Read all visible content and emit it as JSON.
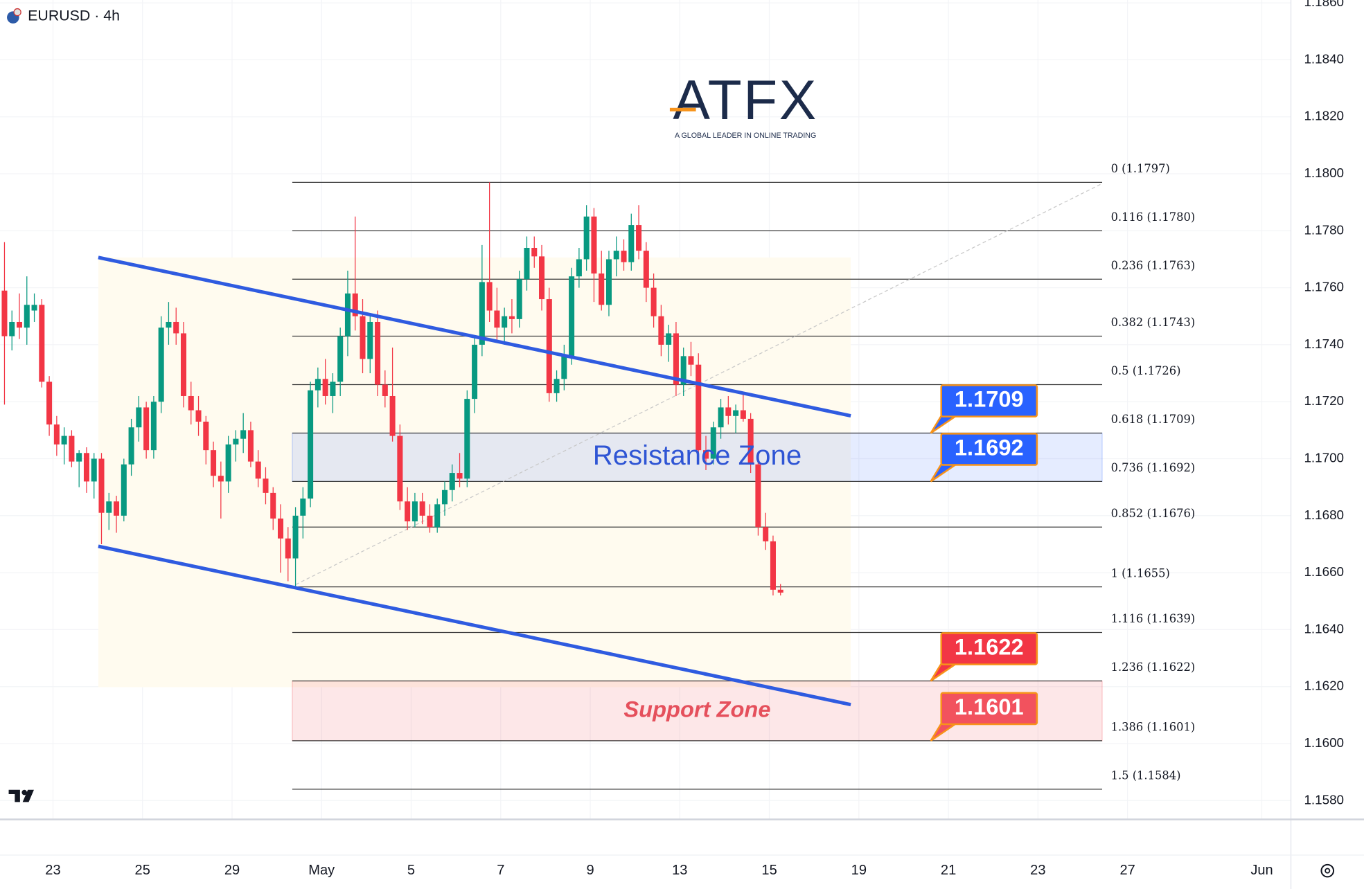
{
  "chart_data": {
    "type": "candlestick",
    "title": "EURUSD · 4h",
    "logo": {
      "name": "ATFX",
      "tagline": "A GLOBAL LEADER IN ONLINE TRADING"
    },
    "up_color": "#089981",
    "down_color": "#f23645",
    "grid": true,
    "xlim": [
      -0.6,
      172.4
    ],
    "ylim": [
      1.1574,
      1.1861
    ],
    "xticks": [
      {
        "value": 6.5,
        "label": "23"
      },
      {
        "value": 18.5,
        "label": "25"
      },
      {
        "value": 30.5,
        "label": "29"
      },
      {
        "value": 42.5,
        "label": "May"
      },
      {
        "value": 54.5,
        "label": "5"
      },
      {
        "value": 66.5,
        "label": "7"
      },
      {
        "value": 78.5,
        "label": "9"
      },
      {
        "value": 90.5,
        "label": "13"
      },
      {
        "value": 102.5,
        "label": "15"
      },
      {
        "value": 114.5,
        "label": "19"
      },
      {
        "value": 126.5,
        "label": "21"
      },
      {
        "value": 138.5,
        "label": "23"
      },
      {
        "value": 150.5,
        "label": "27"
      },
      {
        "value": 168.5,
        "label": "Jun"
      }
    ],
    "yticks": [
      {
        "value": 1.186,
        "label": "1.1860"
      },
      {
        "value": 1.184,
        "label": "1.1840"
      },
      {
        "value": 1.182,
        "label": "1.1820"
      },
      {
        "value": 1.18,
        "label": "1.1800"
      },
      {
        "value": 1.178,
        "label": "1.1780"
      },
      {
        "value": 1.176,
        "label": "1.1760"
      },
      {
        "value": 1.174,
        "label": "1.1740"
      },
      {
        "value": 1.172,
        "label": "1.1720"
      },
      {
        "value": 1.17,
        "label": "1.1700"
      },
      {
        "value": 1.168,
        "label": "1.1680"
      },
      {
        "value": 1.166,
        "label": "1.1660"
      },
      {
        "value": 1.164,
        "label": "1.1640"
      },
      {
        "value": 1.162,
        "label": "1.1620"
      },
      {
        "value": 1.16,
        "label": "1.1600"
      },
      {
        "value": 1.158,
        "label": "1.1580"
      }
    ],
    "candles": [
      [
        1.1759,
        1.1776,
        1.1719,
        1.1743
      ],
      [
        1.1743,
        1.1752,
        1.1738,
        1.1748
      ],
      [
        1.1748,
        1.1758,
        1.1742,
        1.1746
      ],
      [
        1.1746,
        1.1764,
        1.174,
        1.1754
      ],
      [
        1.1752,
        1.1758,
        1.1748,
        1.1754
      ],
      [
        1.1754,
        1.1756,
        1.1725,
        1.1727
      ],
      [
        1.1727,
        1.1729,
        1.1708,
        1.1712
      ],
      [
        1.1712,
        1.1715,
        1.1701,
        1.1705
      ],
      [
        1.1705,
        1.1711,
        1.1698,
        1.1708
      ],
      [
        1.1708,
        1.171,
        1.1697,
        1.1699
      ],
      [
        1.1699,
        1.1703,
        1.169,
        1.1702
      ],
      [
        1.1702,
        1.1704,
        1.1688,
        1.1692
      ],
      [
        1.1692,
        1.1702,
        1.1686,
        1.17
      ],
      [
        1.17,
        1.1702,
        1.167,
        1.1681
      ],
      [
        1.1681,
        1.1688,
        1.1675,
        1.1685
      ],
      [
        1.1685,
        1.1687,
        1.1674,
        1.168
      ],
      [
        1.168,
        1.17,
        1.1678,
        1.1698
      ],
      [
        1.1698,
        1.1714,
        1.1694,
        1.1711
      ],
      [
        1.1711,
        1.1722,
        1.1706,
        1.1718
      ],
      [
        1.1718,
        1.172,
        1.17,
        1.1703
      ],
      [
        1.1703,
        1.1722,
        1.17,
        1.172
      ],
      [
        1.172,
        1.175,
        1.1716,
        1.1746
      ],
      [
        1.1746,
        1.1755,
        1.174,
        1.1748
      ],
      [
        1.1748,
        1.1753,
        1.174,
        1.1744
      ],
      [
        1.1744,
        1.1748,
        1.1718,
        1.1722
      ],
      [
        1.1722,
        1.1727,
        1.1712,
        1.1717
      ],
      [
        1.1717,
        1.1722,
        1.1708,
        1.1713
      ],
      [
        1.1713,
        1.1715,
        1.1698,
        1.1703
      ],
      [
        1.1703,
        1.1706,
        1.169,
        1.1694
      ],
      [
        1.1694,
        1.1699,
        1.1679,
        1.1692
      ],
      [
        1.1692,
        1.1708,
        1.1688,
        1.1705
      ],
      [
        1.1705,
        1.171,
        1.1699,
        1.1707
      ],
      [
        1.1707,
        1.1716,
        1.1702,
        1.171
      ],
      [
        1.171,
        1.1713,
        1.1697,
        1.1699
      ],
      [
        1.1699,
        1.1703,
        1.169,
        1.1693
      ],
      [
        1.1693,
        1.1697,
        1.1684,
        1.1688
      ],
      [
        1.1688,
        1.169,
        1.1675,
        1.1679
      ],
      [
        1.1679,
        1.1684,
        1.166,
        1.1672
      ],
      [
        1.1672,
        1.1676,
        1.1657,
        1.1665
      ],
      [
        1.1665,
        1.1683,
        1.1655,
        1.168
      ],
      [
        1.168,
        1.169,
        1.1672,
        1.1686
      ],
      [
        1.1686,
        1.1727,
        1.1683,
        1.1724
      ],
      [
        1.1724,
        1.1732,
        1.1718,
        1.1728
      ],
      [
        1.1728,
        1.1735,
        1.1719,
        1.1722
      ],
      [
        1.1722,
        1.173,
        1.1716,
        1.1727
      ],
      [
        1.1727,
        1.1746,
        1.1722,
        1.1743
      ],
      [
        1.1743,
        1.1766,
        1.1736,
        1.1758
      ],
      [
        1.1758,
        1.1785,
        1.1745,
        1.175
      ],
      [
        1.175,
        1.1756,
        1.173,
        1.1735
      ],
      [
        1.1735,
        1.175,
        1.173,
        1.1748
      ],
      [
        1.1748,
        1.1752,
        1.1722,
        1.1726
      ],
      [
        1.1726,
        1.1731,
        1.1718,
        1.1722
      ],
      [
        1.1722,
        1.1739,
        1.1706,
        1.1708
      ],
      [
        1.1708,
        1.1712,
        1.1682,
        1.1685
      ],
      [
        1.1685,
        1.169,
        1.1675,
        1.1678
      ],
      [
        1.1678,
        1.1688,
        1.1676,
        1.1685
      ],
      [
        1.1685,
        1.1688,
        1.1677,
        1.168
      ],
      [
        1.168,
        1.1684,
        1.1674,
        1.1676
      ],
      [
        1.1676,
        1.1686,
        1.1674,
        1.1684
      ],
      [
        1.1684,
        1.1692,
        1.168,
        1.1689
      ],
      [
        1.1689,
        1.1698,
        1.1685,
        1.1695
      ],
      [
        1.1695,
        1.1702,
        1.169,
        1.1693
      ],
      [
        1.1693,
        1.1724,
        1.169,
        1.1721
      ],
      [
        1.1721,
        1.1743,
        1.1716,
        1.174
      ],
      [
        1.174,
        1.1775,
        1.1736,
        1.1762
      ],
      [
        1.1762,
        1.1797,
        1.1748,
        1.1752
      ],
      [
        1.1752,
        1.176,
        1.1741,
        1.1746
      ],
      [
        1.1746,
        1.1753,
        1.174,
        1.175
      ],
      [
        1.175,
        1.1756,
        1.1744,
        1.1749
      ],
      [
        1.1749,
        1.1766,
        1.1746,
        1.1763
      ],
      [
        1.1763,
        1.1778,
        1.1759,
        1.1774
      ],
      [
        1.1774,
        1.1778,
        1.1767,
        1.1771
      ],
      [
        1.1771,
        1.1775,
        1.1752,
        1.1756
      ],
      [
        1.1756,
        1.176,
        1.172,
        1.1723
      ],
      [
        1.1723,
        1.1731,
        1.172,
        1.1728
      ],
      [
        1.1728,
        1.174,
        1.1724,
        1.1736
      ],
      [
        1.1736,
        1.1767,
        1.1733,
        1.1764
      ],
      [
        1.1764,
        1.1774,
        1.176,
        1.177
      ],
      [
        1.177,
        1.1789,
        1.1766,
        1.1785
      ],
      [
        1.1785,
        1.1788,
        1.1755,
        1.1765
      ],
      [
        1.1765,
        1.1773,
        1.1752,
        1.1754
      ],
      [
        1.1754,
        1.1773,
        1.175,
        1.177
      ],
      [
        1.177,
        1.1778,
        1.1764,
        1.1773
      ],
      [
        1.1773,
        1.1777,
        1.1766,
        1.1769
      ],
      [
        1.1769,
        1.1786,
        1.1766,
        1.1782
      ],
      [
        1.1782,
        1.1789,
        1.177,
        1.1773
      ],
      [
        1.1773,
        1.1776,
        1.1755,
        1.176
      ],
      [
        1.176,
        1.1765,
        1.1746,
        1.175
      ],
      [
        1.175,
        1.1754,
        1.1736,
        1.174
      ],
      [
        1.174,
        1.1747,
        1.1734,
        1.1744
      ],
      [
        1.1744,
        1.1748,
        1.1722,
        1.1726
      ],
      [
        1.1726,
        1.1739,
        1.1722,
        1.1736
      ],
      [
        1.1736,
        1.1741,
        1.1729,
        1.1733
      ],
      [
        1.1733,
        1.1737,
        1.17,
        1.1703
      ],
      [
        1.1703,
        1.1708,
        1.1696,
        1.17
      ],
      [
        1.17,
        1.1713,
        1.1698,
        1.1711
      ],
      [
        1.1711,
        1.1721,
        1.1707,
        1.1718
      ],
      [
        1.1718,
        1.1722,
        1.1712,
        1.1715
      ],
      [
        1.1715,
        1.1719,
        1.1709,
        1.1717
      ],
      [
        1.1717,
        1.1723,
        1.1713,
        1.1714
      ],
      [
        1.1714,
        1.1716,
        1.1695,
        1.1698
      ],
      [
        1.1698,
        1.17,
        1.1673,
        1.1676
      ],
      [
        1.1676,
        1.1681,
        1.1668,
        1.1671
      ],
      [
        1.1671,
        1.1673,
        1.1652,
        1.1654
      ],
      [
        1.1654,
        1.1656,
        1.1652,
        1.1653
      ]
    ],
    "fib_levels": [
      {
        "value": 1.1797,
        "label": "0 (1.1797)"
      },
      {
        "value": 1.178,
        "label": "0.116 (1.1780)"
      },
      {
        "value": 1.1763,
        "label": "0.236 (1.1763)"
      },
      {
        "value": 1.1743,
        "label": "0.382 (1.1743)"
      },
      {
        "value": 1.1726,
        "label": "0.5 (1.1726)"
      },
      {
        "value": 1.1709,
        "label": "0.618 (1.1709)"
      },
      {
        "value": 1.1692,
        "label": "0.736 (1.1692)"
      },
      {
        "value": 1.1676,
        "label": "0.852 (1.1676)"
      },
      {
        "value": 1.1655,
        "label": "1 (1.1655)"
      },
      {
        "value": 1.1639,
        "label": "1.116 (1.1639)"
      },
      {
        "value": 1.1622,
        "label": "1.236 (1.1622)"
      },
      {
        "value": 1.1601,
        "label": "1.386 (1.1601)"
      },
      {
        "value": 1.1584,
        "label": "1.5 (1.1584)"
      }
    ],
    "zones": [
      {
        "label": "Resistance Zone",
        "low": 1.1692,
        "high": 1.1709,
        "color": "#2962ff",
        "text_color": "#2f55d4",
        "italic": false
      },
      {
        "label": "Support Zone",
        "low": 1.1601,
        "high": 1.1622,
        "color": "#f23645",
        "text_color": "#e5505c",
        "italic": true
      }
    ],
    "price_callouts": [
      {
        "value": 1.1709,
        "color": "#2962ff"
      },
      {
        "value": 1.1692,
        "color": "#2962ff"
      },
      {
        "value": 1.1622,
        "color": "#f23645"
      },
      {
        "value": 1.1601,
        "color": "#f2525e"
      }
    ]
  }
}
